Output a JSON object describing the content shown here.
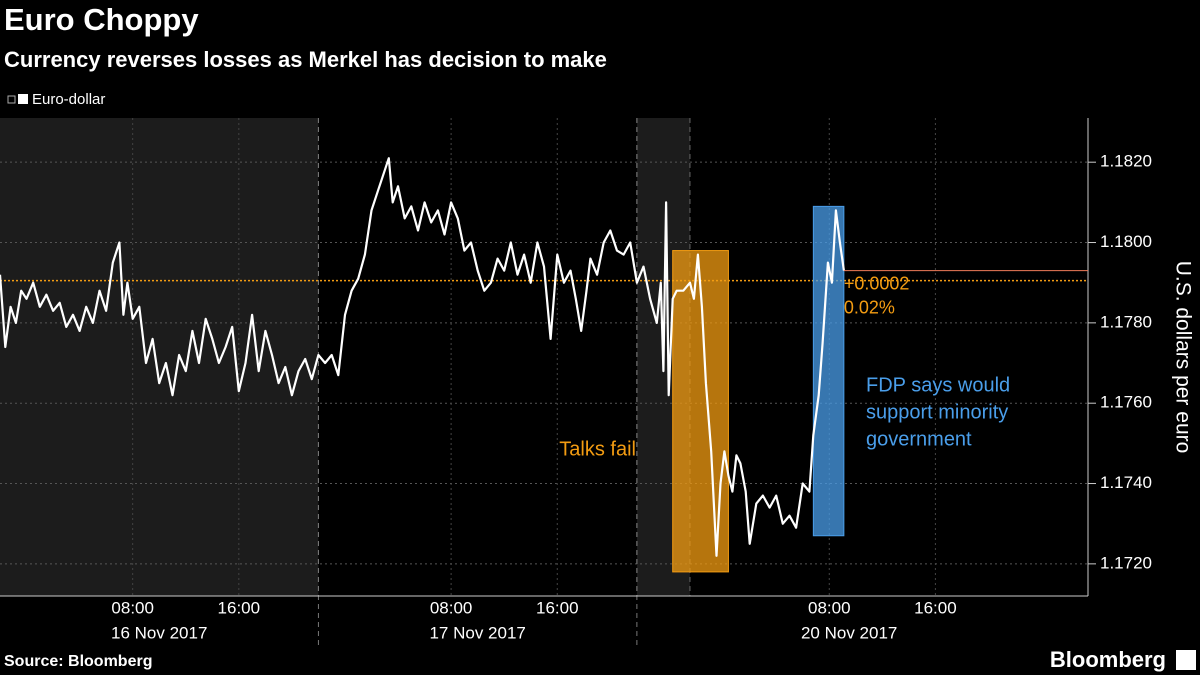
{
  "chart_data": {
    "type": "line",
    "title": "Euro Choppy",
    "subtitle": "Currency reverses losses as Merkel has decision to make",
    "y_label": "U.S. dollars per euro",
    "source": "Source: Bloomberg",
    "brand": "Bloomberg",
    "x": [
      -2,
      -1.6,
      -1.2,
      -0.8,
      -0.4,
      0,
      0.5,
      1,
      1.5,
      2,
      2.5,
      3,
      3.5,
      4,
      4.5,
      5,
      5.5,
      6,
      6.5,
      7,
      7.3,
      7.6,
      8,
      8.5,
      9,
      9.5,
      10,
      10.5,
      11,
      11.5,
      12,
      12.5,
      13,
      13.5,
      14,
      14.5,
      15,
      15.5,
      16,
      16.5,
      17,
      17.5,
      18,
      18.5,
      19,
      19.5,
      20,
      20.5,
      21,
      21.5,
      22,
      22.5,
      23,
      23.5,
      24,
      24.5,
      25,
      25.5,
      26,
      26.5,
      27,
      27.3,
      27.6,
      28,
      28.5,
      29,
      29.5,
      30,
      30.5,
      31,
      31.5,
      32,
      32.5,
      33,
      33.5,
      34,
      34.5,
      35,
      35.5,
      36,
      36.5,
      37,
      37.5,
      38,
      38.5,
      39,
      39.5,
      40,
      40.5,
      41,
      41.4,
      41.8,
      42.2,
      42.5,
      43,
      43.5,
      44,
      44.5,
      45,
      45.5,
      46,
      46.5,
      47,
      47.5,
      47.8,
      48,
      48.2,
      48.4,
      48.7,
      49,
      49.5,
      50,
      50.3,
      50.6,
      50.9,
      51.2,
      51.6,
      52,
      52.3,
      52.6,
      52.9,
      53.2,
      53.5,
      53.8,
      54.2,
      54.5,
      55,
      55.5,
      56,
      56.5,
      57,
      57.5,
      58,
      58.5,
      59,
      59.3,
      59.7,
      60,
      60.4,
      60.7,
      61,
      61.3,
      61.6
    ],
    "series": [
      {
        "name": "Euro-dollar",
        "color": "#ffffff",
        "values": [
          1.1792,
          1.1774,
          1.1784,
          1.178,
          1.1788,
          1.1786,
          1.179,
          1.1784,
          1.1787,
          1.1783,
          1.1785,
          1.1779,
          1.1782,
          1.1778,
          1.1784,
          1.178,
          1.1788,
          1.1783,
          1.1795,
          1.18,
          1.1782,
          1.179,
          1.1781,
          1.1784,
          1.177,
          1.1776,
          1.1765,
          1.177,
          1.1762,
          1.1772,
          1.1768,
          1.1778,
          1.177,
          1.1781,
          1.1776,
          1.177,
          1.1774,
          1.1779,
          1.1763,
          1.177,
          1.1782,
          1.1768,
          1.1778,
          1.1772,
          1.1765,
          1.1769,
          1.1762,
          1.1768,
          1.1771,
          1.1766,
          1.1772,
          1.177,
          1.1772,
          1.1767,
          1.1782,
          1.1788,
          1.1791,
          1.1797,
          1.1808,
          1.1813,
          1.1818,
          1.1821,
          1.181,
          1.1814,
          1.1806,
          1.1809,
          1.1803,
          1.181,
          1.1805,
          1.1808,
          1.1802,
          1.181,
          1.1806,
          1.1798,
          1.18,
          1.1793,
          1.1788,
          1.179,
          1.1796,
          1.1793,
          1.18,
          1.1792,
          1.1797,
          1.179,
          1.18,
          1.1794,
          1.1776,
          1.1797,
          1.179,
          1.1793,
          1.1786,
          1.1778,
          1.1788,
          1.1796,
          1.1792,
          1.18,
          1.1803,
          1.1798,
          1.1797,
          1.18,
          1.179,
          1.1794,
          1.1786,
          1.178,
          1.179,
          1.1768,
          1.181,
          1.1762,
          1.1786,
          1.1788,
          1.1788,
          1.179,
          1.1786,
          1.1797,
          1.1784,
          1.1765,
          1.1748,
          1.1722,
          1.174,
          1.1748,
          1.1742,
          1.1738,
          1.1747,
          1.1745,
          1.1738,
          1.1725,
          1.1735,
          1.1737,
          1.1734,
          1.1737,
          1.173,
          1.1732,
          1.1729,
          1.174,
          1.1738,
          1.1752,
          1.1762,
          1.1775,
          1.1795,
          1.179,
          1.1808,
          1.18,
          1.1793
        ]
      }
    ],
    "xlim": [
      -2,
      80
    ],
    "xticks": [
      {
        "value": 8,
        "label": "08:00"
      },
      {
        "value": 16,
        "label": "16:00"
      },
      {
        "value": 32,
        "label": "08:00"
      },
      {
        "value": 40,
        "label": "16:00"
      },
      {
        "value": 60.5,
        "label": "08:00"
      },
      {
        "value": 68.5,
        "label": "16:00"
      }
    ],
    "date_labels": [
      {
        "value": 10,
        "label": "16 Nov 2017"
      },
      {
        "value": 34,
        "label": "17 Nov 2017"
      },
      {
        "value": 62,
        "label": "20 Nov 2017"
      }
    ],
    "day_breaks": [
      22,
      46
    ],
    "shaded": [
      [
        -2,
        22
      ],
      [
        46,
        50
      ]
    ],
    "ylim": [
      1.1712,
      1.1831
    ],
    "yticks": [
      {
        "value": 1.172,
        "label": "1.1720"
      },
      {
        "value": 1.174,
        "label": "1.1740"
      },
      {
        "value": 1.176,
        "label": "1.1760"
      },
      {
        "value": 1.178,
        "label": "1.1780"
      },
      {
        "value": 1.18,
        "label": "1.1800"
      },
      {
        "value": 1.182,
        "label": "1.1820"
      }
    ],
    "grid": true,
    "reference_line": {
      "value": 1.17905,
      "color": "#f39c12"
    },
    "last_line": {
      "value": 1.1793,
      "color": "#f07c5a"
    },
    "last_labels": [
      "+0.0002",
      "0.02%"
    ],
    "annotations": [
      {
        "lines": [
          "Talks fail"
        ],
        "color": "#f39c12",
        "x": [
          48.7,
          52.9
        ],
        "y": [
          1.1718,
          1.1798
        ]
      },
      {
        "lines": [
          "FDP says would",
          "support minority",
          "government"
        ],
        "color": "#4a9eea",
        "x": [
          59.3,
          61.6
        ],
        "y": [
          1.1727,
          1.1809
        ]
      }
    ]
  }
}
